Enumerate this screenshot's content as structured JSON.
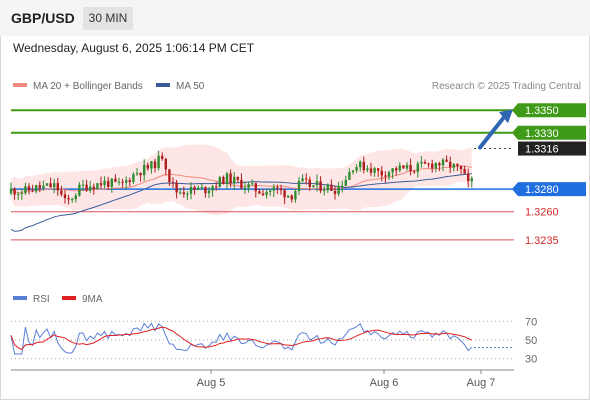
{
  "header": {
    "pair": "GBP/USD",
    "timeframe": "30 MIN"
  },
  "datetime": "Wednesday, August 6, 2025 1:06:14 PM CET",
  "legend": {
    "ma20": {
      "label": "MA 20 + Bollinger Bands",
      "color": "#f08a80"
    },
    "ma50": {
      "label": "MA 50",
      "color": "#3a5b9a"
    },
    "credit": "Research © 2025 Trading Central"
  },
  "rsi_legend": {
    "rsi": {
      "label": "RSI",
      "color": "#5b7fd6"
    },
    "ma9": {
      "label": "9MA",
      "color": "#e02020"
    }
  },
  "colors": {
    "up": "#2e8b2e",
    "down": "#b11c1c",
    "bollinger": "#fde2e0",
    "resistance": "#3f9a17",
    "support_blue": "#1f6fe0",
    "support_red": "#e0525a",
    "arrow": "#2f66b3"
  },
  "chart_data": [
    {
      "type": "candlestick",
      "ylim": [
        1.3195,
        1.3375
      ],
      "levels": [
        {
          "label": "1.3350",
          "value": 1.335,
          "kind": "resistance"
        },
        {
          "label": "1.3330",
          "value": 1.333,
          "kind": "resistance"
        },
        {
          "label": "1.3316",
          "value": 1.3316,
          "kind": "last"
        },
        {
          "label": "1.3280",
          "value": 1.328,
          "kind": "pivot"
        },
        {
          "label": "1.3260",
          "value": 1.326,
          "kind": "support"
        },
        {
          "label": "1.3235",
          "value": 1.3235,
          "kind": "support"
        }
      ],
      "x_ticks": [
        "Aug 5",
        "Aug 6",
        "Aug 7"
      ],
      "forecast": {
        "from": 1.3316,
        "to": 1.335,
        "direction": "up"
      }
    },
    {
      "type": "line",
      "series": [
        {
          "name": "RSI"
        },
        {
          "name": "9MA"
        }
      ],
      "ylim": [
        20,
        80
      ],
      "y_ticks": [
        70,
        50,
        30
      ]
    }
  ]
}
